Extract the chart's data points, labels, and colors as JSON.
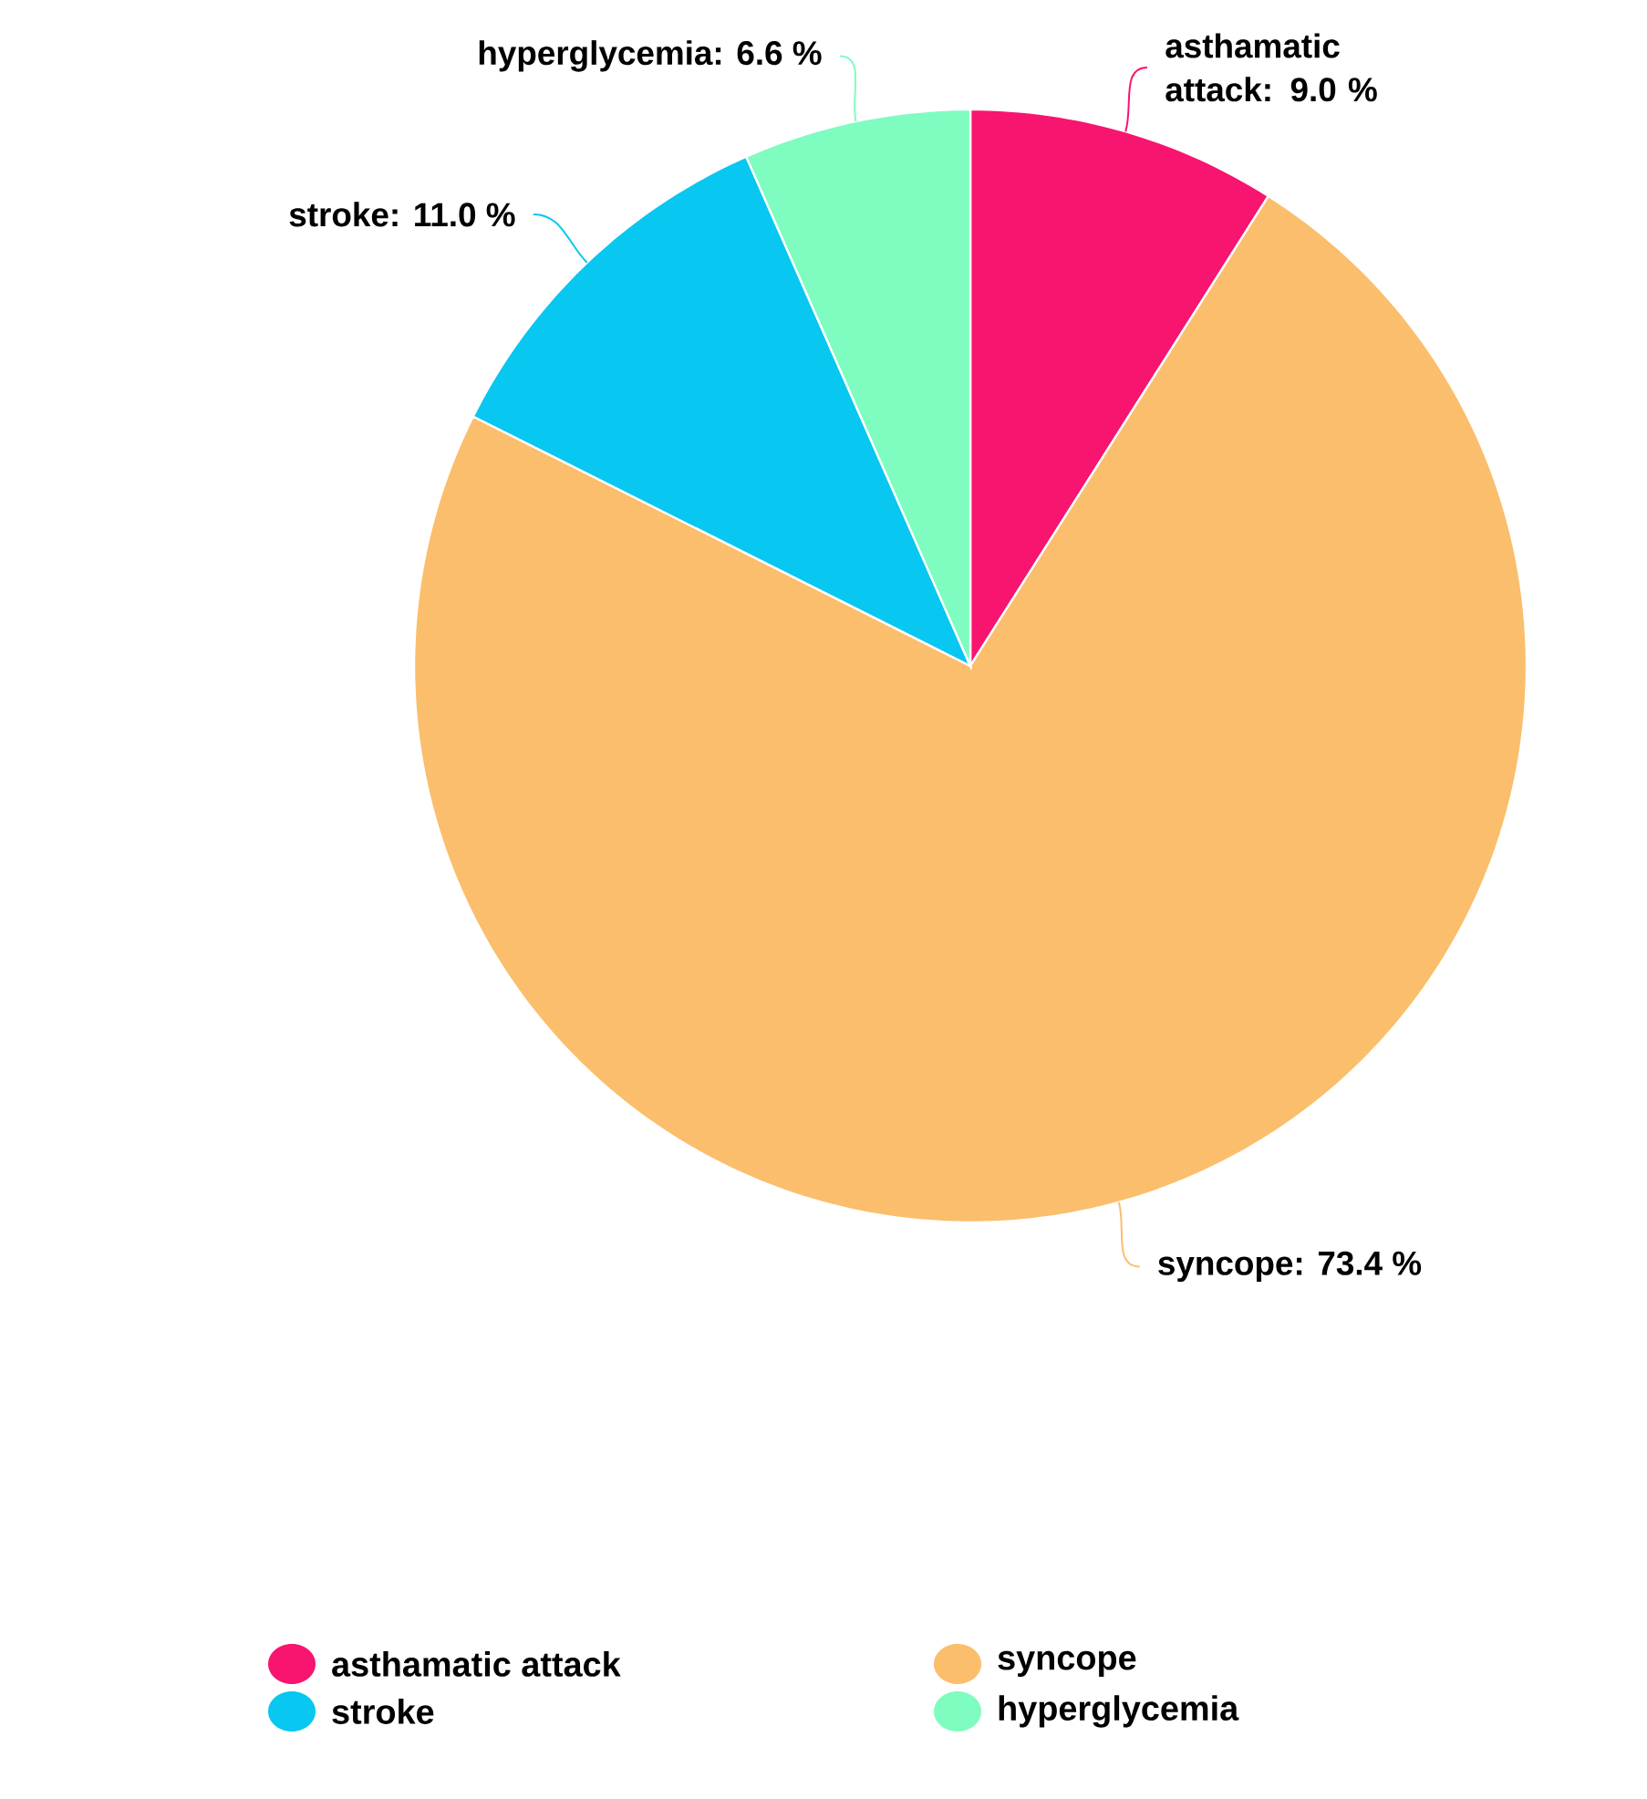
{
  "chart_data": {
    "type": "pie",
    "categories": [
      "asthamatic attack",
      "syncope",
      "stroke",
      "hyperglycemia"
    ],
    "values": [
      9.0,
      73.4,
      11.0,
      6.6
    ],
    "value_labels": [
      "asthamatic attack: 9.0 %",
      "syncope: 73.4 %",
      "stroke: 11.0 %",
      "hyperglycemia: 6.6 %"
    ],
    "colors": [
      "#f7156f",
      "#fbbe6c",
      "#08c7f0",
      "#7ffcc0"
    ],
    "legend": "bottom"
  }
}
